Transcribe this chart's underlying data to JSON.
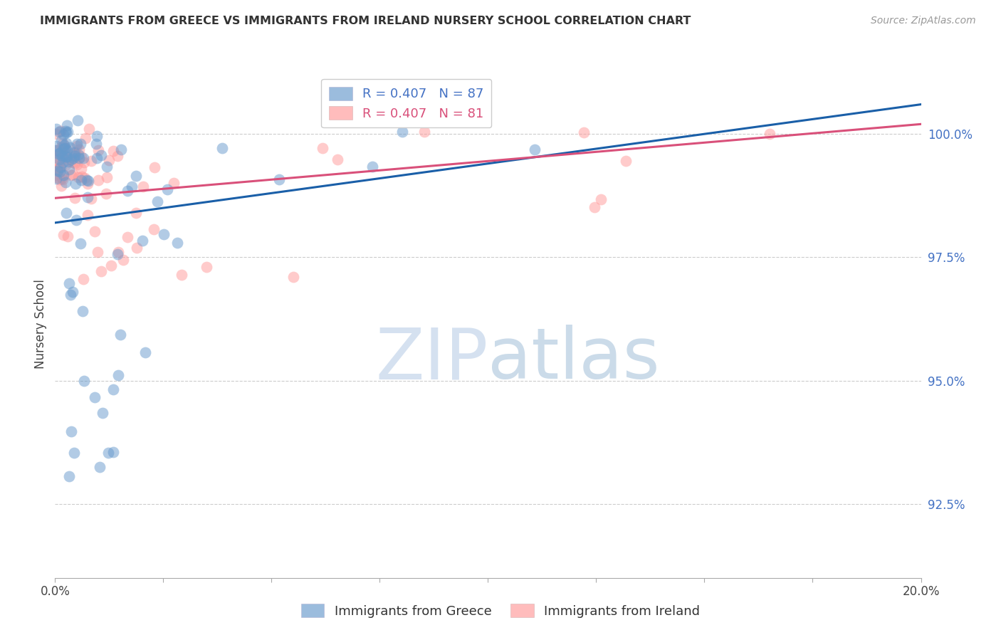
{
  "title": "IMMIGRANTS FROM GREECE VS IMMIGRANTS FROM IRELAND NURSERY SCHOOL CORRELATION CHART",
  "source": "Source: ZipAtlas.com",
  "ylabel": "Nursery School",
  "yticks": [
    92.5,
    95.0,
    97.5,
    100.0
  ],
  "ytick_labels": [
    "92.5%",
    "95.0%",
    "97.5%",
    "100.0%"
  ],
  "xmin": 0.0,
  "xmax": 20.0,
  "ymin": 91.0,
  "ymax": 101.3,
  "greece_color": "#6699CC",
  "ireland_color": "#FF9999",
  "greece_line_color": "#1A5FA8",
  "ireland_line_color": "#D9507A",
  "greece_R": 0.407,
  "greece_N": 87,
  "ireland_R": 0.407,
  "ireland_N": 81,
  "watermark_zip": "ZIP",
  "watermark_atlas": "atlas",
  "watermark_color_zip": "#C5D5E8",
  "watermark_color_atlas": "#B8CDE0",
  "legend_label_greece": "Immigrants from Greece",
  "legend_label_ireland": "Immigrants from Ireland",
  "ytick_color": "#4472C4",
  "grid_color": "#CCCCCC",
  "title_color": "#333333",
  "source_color": "#999999"
}
